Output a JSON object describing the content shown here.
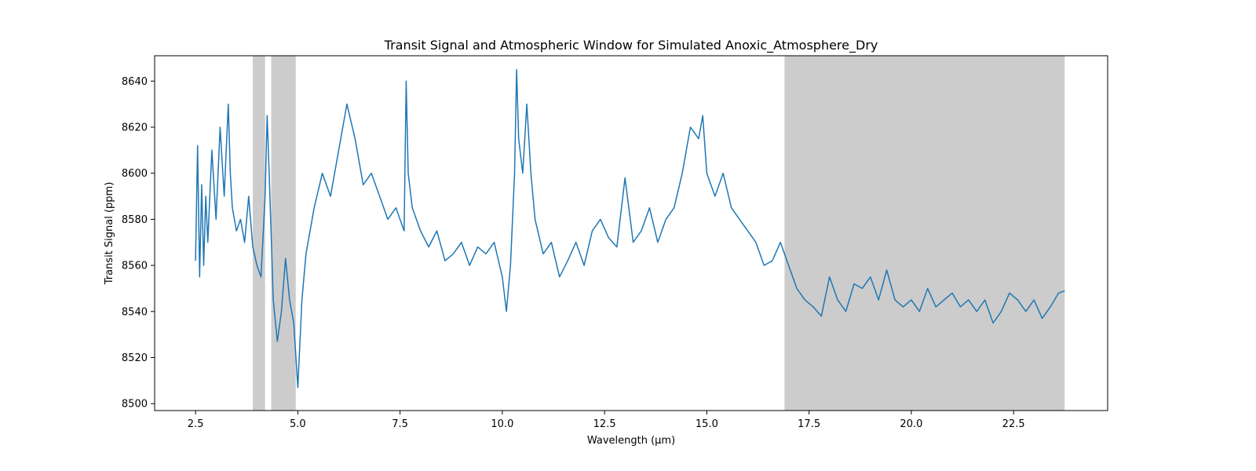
{
  "chart_data": {
    "type": "line",
    "title": "Transit Signal and Atmospheric Window for Simulated Anoxic_Atmosphere_Dry",
    "xlabel": "Wavelength (μm)",
    "ylabel": "Transit Signal (ppm)",
    "xlim": [
      1.5,
      24.8
    ],
    "ylim": [
      8497,
      8651
    ],
    "xticks": [
      2.5,
      5.0,
      7.5,
      10.0,
      12.5,
      15.0,
      17.5,
      20.0,
      22.5
    ],
    "xtick_labels": [
      "2.5",
      "5.0",
      "7.5",
      "10.0",
      "12.5",
      "15.0",
      "17.5",
      "20.0",
      "22.5"
    ],
    "yticks": [
      8500,
      8520,
      8540,
      8560,
      8580,
      8600,
      8620,
      8640
    ],
    "ytick_labels": [
      "8500",
      "8520",
      "8540",
      "8560",
      "8580",
      "8600",
      "8620",
      "8640"
    ],
    "grid": false,
    "line_color": "#1f77b4",
    "shade_color": "#cccccc",
    "shaded_bands": [
      [
        3.9,
        4.2
      ],
      [
        4.35,
        4.95
      ],
      [
        16.9,
        23.75
      ]
    ],
    "series": [
      {
        "x": [
          2.5,
          2.55,
          2.6,
          2.65,
          2.7,
          2.75,
          2.8,
          2.9,
          3.0,
          3.1,
          3.2,
          3.3,
          3.35,
          3.4,
          3.5,
          3.6,
          3.7,
          3.8,
          3.9,
          4.0,
          4.1,
          4.2,
          4.25,
          4.3,
          4.4,
          4.5,
          4.6,
          4.7,
          4.8,
          4.9,
          5.0,
          5.1,
          5.2,
          5.4,
          5.6,
          5.8,
          6.0,
          6.2,
          6.4,
          6.6,
          6.8,
          7.0,
          7.2,
          7.4,
          7.6,
          7.65,
          7.7,
          7.8,
          8.0,
          8.2,
          8.4,
          8.6,
          8.8,
          9.0,
          9.2,
          9.4,
          9.6,
          9.8,
          10.0,
          10.1,
          10.2,
          10.3,
          10.35,
          10.4,
          10.5,
          10.6,
          10.7,
          10.8,
          11.0,
          11.2,
          11.4,
          11.6,
          11.8,
          12.0,
          12.2,
          12.4,
          12.6,
          12.8,
          13.0,
          13.2,
          13.4,
          13.6,
          13.8,
          14.0,
          14.2,
          14.4,
          14.6,
          14.8,
          14.9,
          15.0,
          15.2,
          15.4,
          15.6,
          15.8,
          16.0,
          16.2,
          16.4,
          16.6,
          16.8,
          17.0,
          17.2,
          17.4,
          17.6,
          17.8,
          18.0,
          18.2,
          18.4,
          18.6,
          18.8,
          19.0,
          19.2,
          19.4,
          19.6,
          19.8,
          20.0,
          20.2,
          20.4,
          20.6,
          20.8,
          21.0,
          21.2,
          21.4,
          21.6,
          21.8,
          22.0,
          22.2,
          22.4,
          22.6,
          22.8,
          23.0,
          23.2,
          23.4,
          23.6,
          23.75
        ],
        "y": [
          8562,
          8612,
          8555,
          8595,
          8560,
          8590,
          8570,
          8610,
          8580,
          8620,
          8590,
          8630,
          8600,
          8585,
          8575,
          8580,
          8570,
          8590,
          8568,
          8560,
          8555,
          8590,
          8625,
          8600,
          8545,
          8527,
          8540,
          8563,
          8545,
          8535,
          8507,
          8545,
          8565,
          8585,
          8600,
          8590,
          8610,
          8630,
          8615,
          8595,
          8600,
          8590,
          8580,
          8585,
          8575,
          8640,
          8600,
          8585,
          8575,
          8568,
          8575,
          8562,
          8565,
          8570,
          8560,
          8568,
          8565,
          8570,
          8555,
          8540,
          8560,
          8600,
          8645,
          8615,
          8600,
          8630,
          8600,
          8580,
          8565,
          8570,
          8555,
          8562,
          8570,
          8560,
          8575,
          8580,
          8572,
          8568,
          8598,
          8570,
          8575,
          8585,
          8570,
          8580,
          8585,
          8600,
          8620,
          8615,
          8625,
          8600,
          8590,
          8600,
          8585,
          8580,
          8575,
          8570,
          8560,
          8562,
          8570,
          8560,
          8550,
          8545,
          8542,
          8538,
          8555,
          8545,
          8540,
          8552,
          8550,
          8555,
          8545,
          8558,
          8545,
          8542,
          8545,
          8540,
          8550,
          8542,
          8545,
          8548,
          8542,
          8545,
          8540,
          8545,
          8535,
          8540,
          8548,
          8545,
          8540,
          8545,
          8537,
          8542,
          8548,
          8549
        ]
      }
    ]
  }
}
